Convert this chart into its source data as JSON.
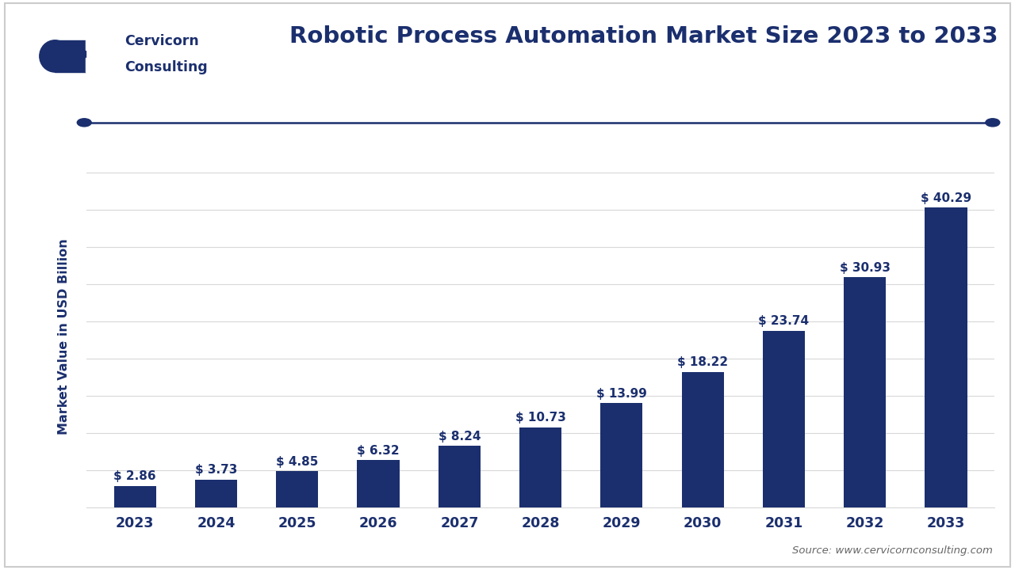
{
  "title": "Robotic Process Automation Market Size 2023 to 2033",
  "ylabel": "Market Value in USD Billion",
  "source": "Source: www.cervicornconsulting.com",
  "bar_color": "#1b2f6e",
  "background_color": "#ffffff",
  "grid_color": "#d8d8d8",
  "years": [
    "2023",
    "2024",
    "2025",
    "2026",
    "2027",
    "2028",
    "2029",
    "2030",
    "2031",
    "2032",
    "2033"
  ],
  "values": [
    2.86,
    3.73,
    4.85,
    6.32,
    8.24,
    10.73,
    13.99,
    18.22,
    23.74,
    30.93,
    40.29
  ],
  "labels": [
    "$ 2.86",
    "$ 3.73",
    "$ 4.85",
    "$ 6.32",
    "$ 8.24",
    "$ 10.73",
    "$ 13.99",
    "$ 18.22",
    "$ 23.74",
    "$ 30.93",
    "$ 40.29"
  ],
  "ylim": [
    0,
    46
  ],
  "title_color": "#1b2f6e",
  "label_color": "#1b2f6e",
  "axis_label_color": "#1b2f6e",
  "tick_color": "#1b2f6e",
  "header_line_color": "#1b2f6e",
  "logo_color": "#1b2f6e",
  "logo_text": "Cervicorn\nConsulting",
  "border_color": "#cccccc",
  "source_color": "#666666"
}
